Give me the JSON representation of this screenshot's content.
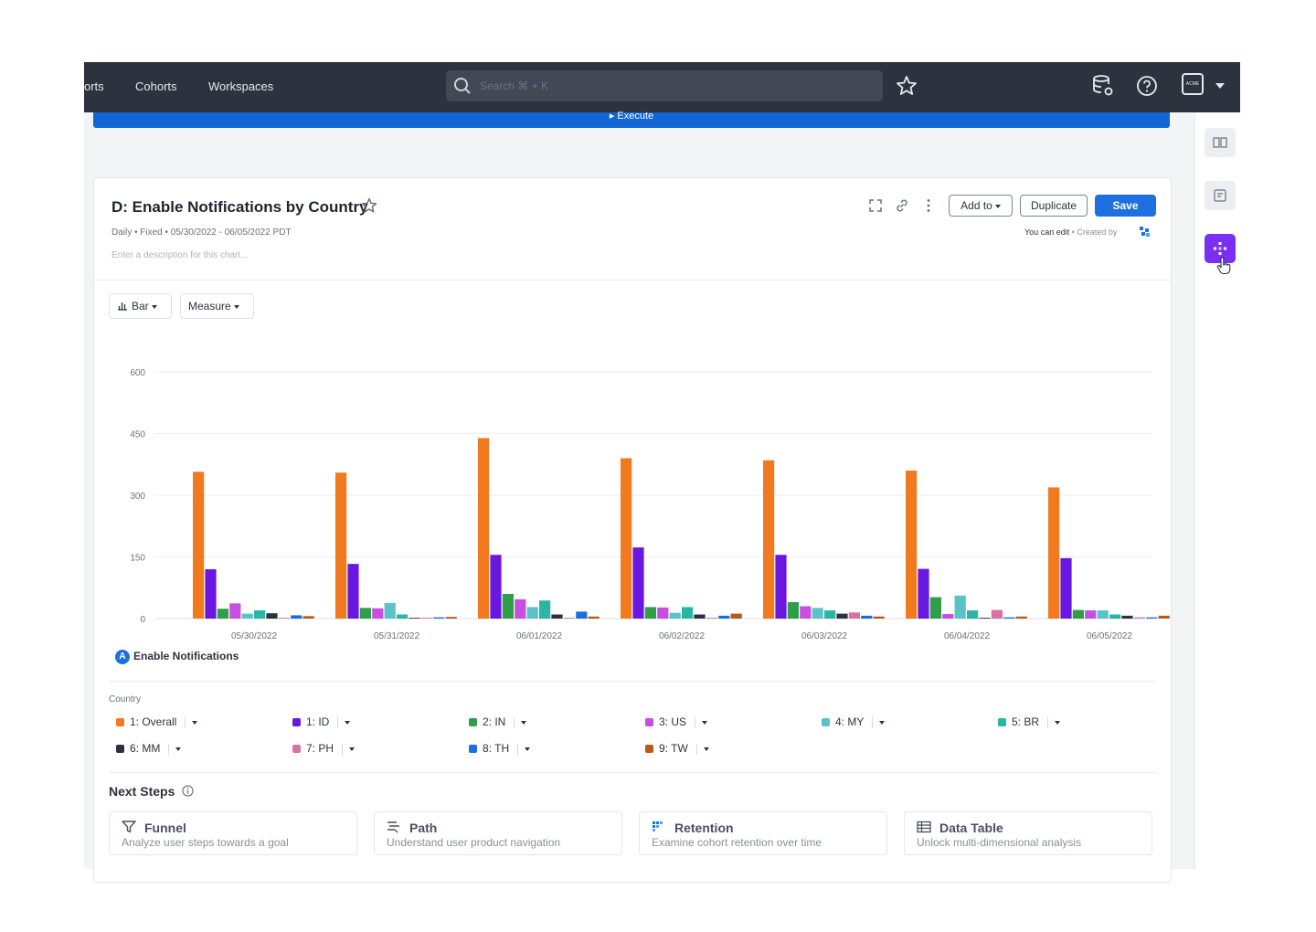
{
  "nav": {
    "partial_link": "orts",
    "links": [
      "Cohorts",
      "Workspaces"
    ],
    "search_placeholder": "Search ⌘ + K",
    "org_logo": "ACME"
  },
  "execute_label": "▸ Execute",
  "chart_header": {
    "title": "D: Enable Notifications by Country",
    "meta": "Daily • Fixed • 05/30/2022 - 06/05/2022 PDT",
    "description_placeholder": "Enter a description for this chart...",
    "add_to_label": "Add to",
    "duplicate_label": "Duplicate",
    "save_label": "Save",
    "edit_permission": "You can edit",
    "created_by": " • Created by"
  },
  "controls": {
    "chart_type": "Bar",
    "measure": "Measure"
  },
  "chart_data": {
    "type": "bar",
    "title": "D: Enable Notifications by Country",
    "xlabel": "",
    "ylabel": "",
    "ylim": [
      0,
      600
    ],
    "y_ticks": [
      0,
      150,
      300,
      450,
      600
    ],
    "grid": true,
    "categories": [
      "05/30/2022",
      "05/31/2022",
      "06/01/2022",
      "06/02/2022",
      "06/03/2022",
      "06/04/2022",
      "06/05/2022"
    ],
    "series": [
      {
        "name": "1: Overall",
        "color": "#f07a1d",
        "values": [
          357,
          355,
          439,
          390,
          385,
          360,
          319
        ]
      },
      {
        "name": "1: ID",
        "color": "#6a17e0",
        "values": [
          120,
          133,
          155,
          173,
          155,
          121,
          147
        ]
      },
      {
        "name": "2: IN",
        "color": "#2e9e48",
        "values": [
          24,
          26,
          60,
          28,
          40,
          52,
          21
        ]
      },
      {
        "name": "3: US",
        "color": "#c84ee0",
        "values": [
          37,
          25,
          47,
          27,
          30,
          11,
          20
        ]
      },
      {
        "name": "4: MY",
        "color": "#5bc3c8",
        "values": [
          12,
          38,
          28,
          14,
          26,
          56,
          20
        ]
      },
      {
        "name": "5: BR",
        "color": "#2bb5a5",
        "values": [
          20,
          10,
          44,
          28,
          20,
          20,
          10
        ]
      },
      {
        "name": "6: MM",
        "color": "#2d333e",
        "values": [
          13,
          2,
          10,
          10,
          12,
          2,
          7
        ]
      },
      {
        "name": "7: PH",
        "color": "#d873a0",
        "values": [
          2,
          2,
          2,
          2,
          15,
          21,
          3
        ]
      },
      {
        "name": "8: TH",
        "color": "#1a6fe0",
        "values": [
          8,
          3,
          17,
          7,
          7,
          3,
          3
        ]
      },
      {
        "name": "9: TW",
        "color": "#b85a1a",
        "values": [
          6,
          4,
          5,
          12,
          5,
          5,
          7
        ]
      }
    ]
  },
  "metric": {
    "badge": "A",
    "name": "Enable Notifications"
  },
  "legend": {
    "group_label": "Country"
  },
  "next_steps": {
    "heading": "Next Steps",
    "items": [
      {
        "title": "Funnel",
        "desc": "Analyze user steps towards a goal"
      },
      {
        "title": "Path",
        "desc": "Understand user product navigation"
      },
      {
        "title": "Retention",
        "desc": "Examine cohort retention over time"
      },
      {
        "title": "Data Table",
        "desc": "Unlock multi-dimensional analysis"
      }
    ]
  }
}
